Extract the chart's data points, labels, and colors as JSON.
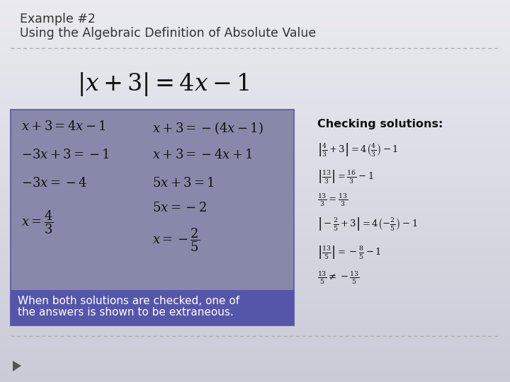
{
  "title_line1": "Example #2",
  "title_line2": "Using the Algebraic Definition of Absolute Value",
  "bg_color_top": "#eaeaf0",
  "bg_color_bottom": "#c8c8d8",
  "title_color": "#333333",
  "sep_color": "#aaaaaa",
  "box_bg": "#8888aa",
  "box_border": "#6666aa",
  "note_box_bg": "#5555aa",
  "note_text_color": "#ffffff",
  "eq_text_color": "#111111",
  "checking_title": "Checking solutions:",
  "note_line1": "When both solutions are checked, one of",
  "note_line2": "the answers is shown to be extraneous.",
  "arrow_color": "#555555"
}
